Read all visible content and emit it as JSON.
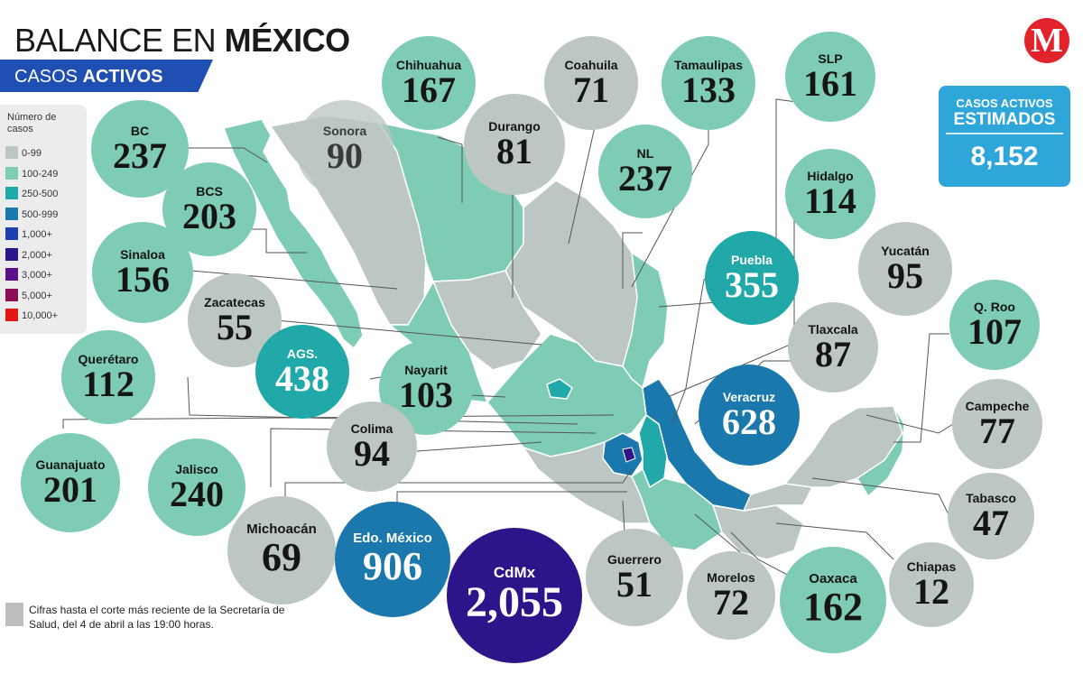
{
  "header": {
    "title_a": "BALANCE EN",
    "title_b": "MÉXICO",
    "subtitle_a": "CASOS",
    "subtitle_b": "ACTIVOS"
  },
  "legend": {
    "title": "Número de casos",
    "items": [
      {
        "label": "0-99",
        "color": "#bcc7c3"
      },
      {
        "label": "100-249",
        "color": "#7ecbb6"
      },
      {
        "label": "250-500",
        "color": "#21a8a8"
      },
      {
        "label": "500-999",
        "color": "#1b78ad"
      },
      {
        "label": "1,000+",
        "color": "#1d3fb0"
      },
      {
        "label": "2,000+",
        "color": "#2d148a"
      },
      {
        "label": "3,000+",
        "color": "#5a118a"
      },
      {
        "label": "5,000+",
        "color": "#8a0f55"
      },
      {
        "label": "10,000+",
        "color": "#e31616"
      }
    ]
  },
  "estimate": {
    "label_1": "CASOS ACTIVOS",
    "label_2": "ESTIMADOS",
    "value": "8,152"
  },
  "logo": {
    "letter": "M",
    "color": "#e3232b"
  },
  "footnote": "Cifras hasta el corte más reciente de la Secretaría de Salud, del 4 de abril a las 19:00 horas.",
  "states": [
    {
      "name": "BC",
      "value": "237",
      "color": "#7ecbb6"
    },
    {
      "name": "Sonora",
      "value": "90",
      "color": "#bcc7c3"
    },
    {
      "name": "Chihuahua",
      "value": "167",
      "color": "#7ecbb6"
    },
    {
      "name": "Coahuila",
      "value": "71",
      "color": "#bcc7c3"
    },
    {
      "name": "Tamaulipas",
      "value": "133",
      "color": "#7ecbb6"
    },
    {
      "name": "SLP",
      "value": "161",
      "color": "#7ecbb6"
    },
    {
      "name": "Durango",
      "value": "81",
      "color": "#bcc7c3"
    },
    {
      "name": "BCS",
      "value": "203",
      "color": "#7ecbb6"
    },
    {
      "name": "NL",
      "value": "237",
      "color": "#7ecbb6"
    },
    {
      "name": "Hidalgo",
      "value": "114",
      "color": "#7ecbb6"
    },
    {
      "name": "Sinaloa",
      "value": "156",
      "color": "#7ecbb6"
    },
    {
      "name": "Puebla",
      "value": "355",
      "color": "#21a8a8"
    },
    {
      "name": "Yucatán",
      "value": "95",
      "color": "#bcc7c3"
    },
    {
      "name": "Zacatecas",
      "value": "55",
      "color": "#bcc7c3"
    },
    {
      "name": "Q. Roo",
      "value": "107",
      "color": "#7ecbb6"
    },
    {
      "name": "Tlaxcala",
      "value": "87",
      "color": "#bcc7c3"
    },
    {
      "name": "Querétaro",
      "value": "112",
      "color": "#7ecbb6"
    },
    {
      "name": "AGS.",
      "value": "438",
      "color": "#21a8a8"
    },
    {
      "name": "Nayarit",
      "value": "103",
      "color": "#7ecbb6"
    },
    {
      "name": "Veracruz",
      "value": "628",
      "color": "#1b78ad"
    },
    {
      "name": "Campeche",
      "value": "77",
      "color": "#bcc7c3"
    },
    {
      "name": "Colima",
      "value": "94",
      "color": "#bcc7c3"
    },
    {
      "name": "Guanajuato",
      "value": "201",
      "color": "#7ecbb6"
    },
    {
      "name": "Jalisco",
      "value": "240",
      "color": "#7ecbb6"
    },
    {
      "name": "Tabasco",
      "value": "47",
      "color": "#bcc7c3"
    },
    {
      "name": "Michoacán",
      "value": "69",
      "color": "#bcc7c3"
    },
    {
      "name": "Edo. México",
      "value": "906",
      "color": "#1b78ad"
    },
    {
      "name": "CdMx",
      "value": "2,055",
      "color": "#2d148a"
    },
    {
      "name": "Guerrero",
      "value": "51",
      "color": "#bcc7c3"
    },
    {
      "name": "Morelos",
      "value": "72",
      "color": "#bcc7c3"
    },
    {
      "name": "Oaxaca",
      "value": "162",
      "color": "#7ecbb6"
    },
    {
      "name": "Chiapas",
      "value": "12",
      "color": "#bcc7c3"
    }
  ]
}
